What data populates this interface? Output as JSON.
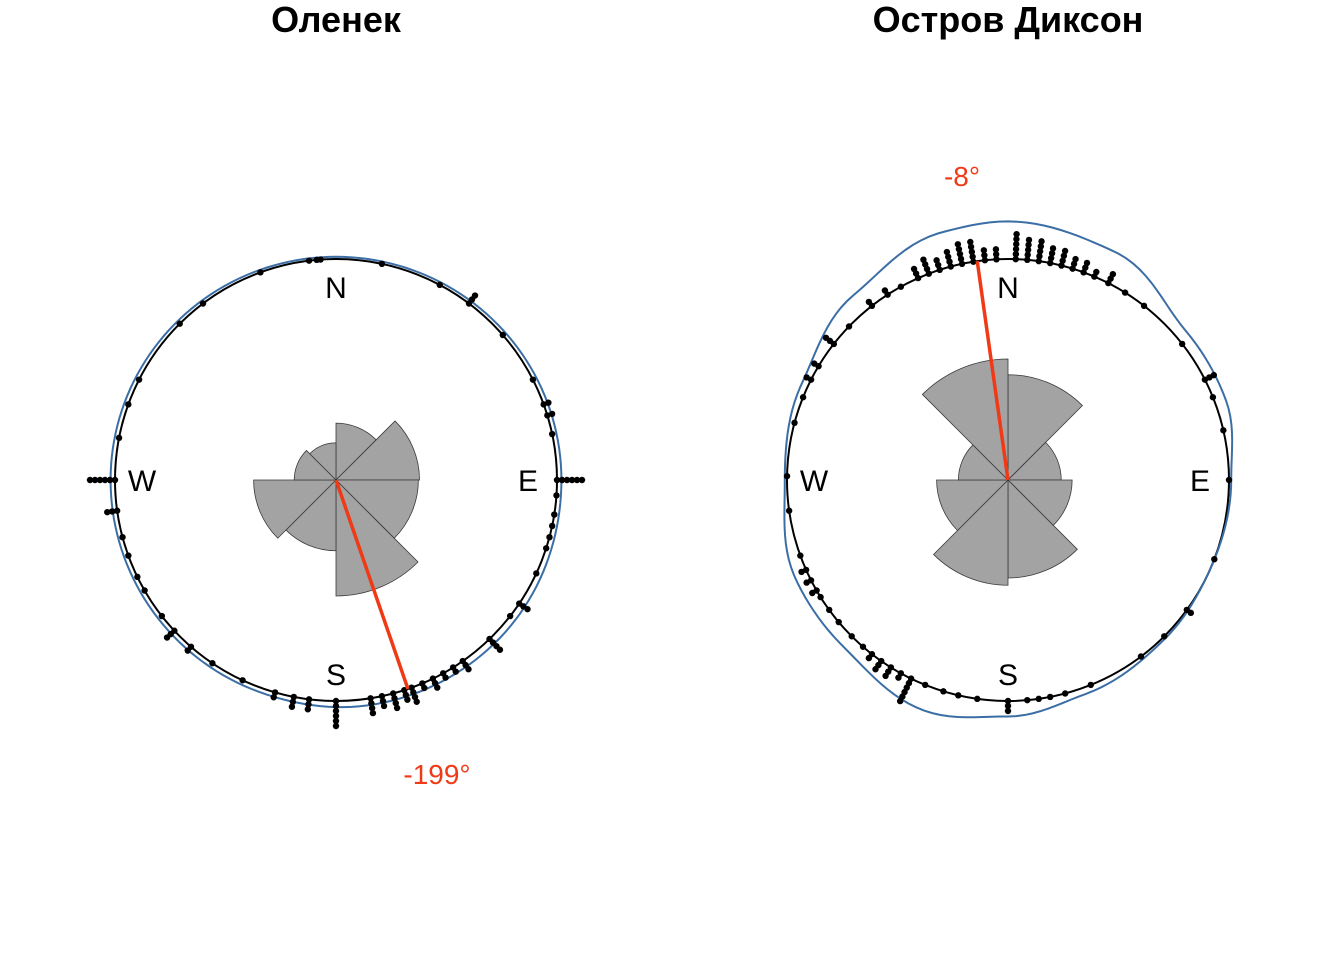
{
  "colors": {
    "rose_fill": "#a3a3a3",
    "rose_stroke": "#3a3a3a",
    "density": "#3b6ea5",
    "mean": "#f03a17",
    "circle": "#000000",
    "points": "#000000"
  },
  "chart_data": [
    {
      "type": "rose",
      "title": "Оленек",
      "compass": {
        "n": "N",
        "e": "E",
        "s": "S",
        "w": "W"
      },
      "mean_direction_deg": -199,
      "mean_label": "-199°",
      "mean_resultant_length": 1.0,
      "sectors": [
        {
          "from": 0,
          "to": 45,
          "r": 0.49
        },
        {
          "from": 45,
          "to": 90,
          "r": 0.72
        },
        {
          "from": 90,
          "to": 135,
          "r": 0.71
        },
        {
          "from": 135,
          "to": 180,
          "r": 1.0
        },
        {
          "from": 180,
          "to": 225,
          "r": 0.61
        },
        {
          "from": 225,
          "to": 270,
          "r": 0.71
        },
        {
          "from": 270,
          "to": 315,
          "r": 0.36
        },
        {
          "from": 315,
          "to": 360,
          "r": 0.32
        }
      ],
      "observations": [
        {
          "deg": 12,
          "n": 1
        },
        {
          "deg": 28,
          "n": 1
        },
        {
          "deg": 37,
          "n": 3
        },
        {
          "deg": 49,
          "n": 1
        },
        {
          "deg": 63,
          "n": 1
        },
        {
          "deg": 70,
          "n": 2
        },
        {
          "deg": 73,
          "n": 2
        },
        {
          "deg": 78,
          "n": 1
        },
        {
          "deg": 90,
          "n": 6
        },
        {
          "deg": 94,
          "n": 1
        },
        {
          "deg": 99,
          "n": 1
        },
        {
          "deg": 102,
          "n": 1
        },
        {
          "deg": 105,
          "n": 1
        },
        {
          "deg": 108,
          "n": 1
        },
        {
          "deg": 115,
          "n": 1
        },
        {
          "deg": 124,
          "n": 3
        },
        {
          "deg": 128,
          "n": 1
        },
        {
          "deg": 136,
          "n": 4
        },
        {
          "deg": 145,
          "n": 3
        },
        {
          "deg": 148,
          "n": 2
        },
        {
          "deg": 151,
          "n": 2
        },
        {
          "deg": 154,
          "n": 3
        },
        {
          "deg": 157,
          "n": 2
        },
        {
          "deg": 160,
          "n": 4
        },
        {
          "deg": 162,
          "n": 3
        },
        {
          "deg": 165,
          "n": 4
        },
        {
          "deg": 168,
          "n": 3
        },
        {
          "deg": 171,
          "n": 4
        },
        {
          "deg": 180,
          "n": 6
        },
        {
          "deg": 187,
          "n": 3
        },
        {
          "deg": 191,
          "n": 3
        },
        {
          "deg": 196,
          "n": 2
        },
        {
          "deg": 205,
          "n": 1
        },
        {
          "deg": 214,
          "n": 1
        },
        {
          "deg": 221,
          "n": 2
        },
        {
          "deg": 227,
          "n": 3
        },
        {
          "deg": 232,
          "n": 1
        },
        {
          "deg": 240,
          "n": 1
        },
        {
          "deg": 244,
          "n": 1
        },
        {
          "deg": 250,
          "n": 1
        },
        {
          "deg": 255,
          "n": 1
        },
        {
          "deg": 262,
          "n": 3
        },
        {
          "deg": 270,
          "n": 6
        },
        {
          "deg": 281,
          "n": 1
        },
        {
          "deg": 290,
          "n": 1
        },
        {
          "deg": 297,
          "n": 1
        },
        {
          "deg": 315,
          "n": 1
        },
        {
          "deg": 323,
          "n": 1
        },
        {
          "deg": 340,
          "n": 1
        },
        {
          "deg": 353,
          "n": 1
        },
        {
          "deg": 355,
          "n": 1
        },
        {
          "deg": 356,
          "n": 1
        }
      ],
      "density_curve": [
        {
          "deg": 0,
          "r": 1.01
        },
        {
          "deg": 90,
          "r": 1.02
        },
        {
          "deg": 135,
          "r": 1.03
        },
        {
          "deg": 170,
          "r": 1.03
        },
        {
          "deg": 200,
          "r": 1.02
        },
        {
          "deg": 270,
          "r": 1.02
        },
        {
          "deg": 360,
          "r": 1.01
        }
      ]
    },
    {
      "type": "rose",
      "title": "Остров Диксон",
      "compass": {
        "n": "N",
        "e": "E",
        "s": "S",
        "w": "W"
      },
      "mean_direction_deg": -8,
      "mean_label": "-8°",
      "mean_resultant_length": 1.0,
      "sectors": [
        {
          "from": 0,
          "to": 45,
          "r": 0.87
        },
        {
          "from": 45,
          "to": 90,
          "r": 0.44
        },
        {
          "from": 90,
          "to": 135,
          "r": 0.53
        },
        {
          "from": 135,
          "to": 180,
          "r": 0.81
        },
        {
          "from": 180,
          "to": 225,
          "r": 0.87
        },
        {
          "from": 225,
          "to": 270,
          "r": 0.59
        },
        {
          "from": 270,
          "to": 315,
          "r": 0.41
        },
        {
          "from": 315,
          "to": 360,
          "r": 1.0
        }
      ],
      "observations": [
        {
          "deg": 2,
          "n": 6
        },
        {
          "deg": 5,
          "n": 5
        },
        {
          "deg": 8,
          "n": 5
        },
        {
          "deg": 11,
          "n": 4
        },
        {
          "deg": 14,
          "n": 4
        },
        {
          "deg": 17,
          "n": 3
        },
        {
          "deg": 20,
          "n": 3
        },
        {
          "deg": 23,
          "n": 2
        },
        {
          "deg": 27,
          "n": 3
        },
        {
          "deg": 32,
          "n": 1
        },
        {
          "deg": 38,
          "n": 1
        },
        {
          "deg": 52,
          "n": 1
        },
        {
          "deg": 63,
          "n": 3
        },
        {
          "deg": 68,
          "n": 1
        },
        {
          "deg": 77,
          "n": 1
        },
        {
          "deg": 90,
          "n": 1
        },
        {
          "deg": 111,
          "n": 1
        },
        {
          "deg": 126,
          "n": 2
        },
        {
          "deg": 135,
          "n": 1
        },
        {
          "deg": 143,
          "n": 1
        },
        {
          "deg": 158,
          "n": 1
        },
        {
          "deg": 165,
          "n": 1
        },
        {
          "deg": 169,
          "n": 1
        },
        {
          "deg": 172,
          "n": 1
        },
        {
          "deg": 175,
          "n": 1
        },
        {
          "deg": 180,
          "n": 3
        },
        {
          "deg": 188,
          "n": 1
        },
        {
          "deg": 193,
          "n": 1
        },
        {
          "deg": 197,
          "n": 1
        },
        {
          "deg": 202,
          "n": 1
        },
        {
          "deg": 206,
          "n": 6
        },
        {
          "deg": 209,
          "n": 2
        },
        {
          "deg": 212,
          "n": 3
        },
        {
          "deg": 215,
          "n": 3
        },
        {
          "deg": 218,
          "n": 2
        },
        {
          "deg": 221,
          "n": 1
        },
        {
          "deg": 225,
          "n": 1
        },
        {
          "deg": 230,
          "n": 1
        },
        {
          "deg": 234,
          "n": 1
        },
        {
          "deg": 238,
          "n": 1
        },
        {
          "deg": 240,
          "n": 2
        },
        {
          "deg": 243,
          "n": 2
        },
        {
          "deg": 246,
          "n": 2
        },
        {
          "deg": 250,
          "n": 1
        },
        {
          "deg": 262,
          "n": 1
        },
        {
          "deg": 271,
          "n": 1
        },
        {
          "deg": 285,
          "n": 1
        },
        {
          "deg": 292,
          "n": 1
        },
        {
          "deg": 297,
          "n": 2
        },
        {
          "deg": 301,
          "n": 2
        },
        {
          "deg": 308,
          "n": 3
        },
        {
          "deg": 314,
          "n": 1
        },
        {
          "deg": 322,
          "n": 2
        },
        {
          "deg": 327,
          "n": 2
        },
        {
          "deg": 331,
          "n": 1
        },
        {
          "deg": 336,
          "n": 3
        },
        {
          "deg": 339,
          "n": 4
        },
        {
          "deg": 342,
          "n": 3
        },
        {
          "deg": 345,
          "n": 4
        },
        {
          "deg": 348,
          "n": 5
        },
        {
          "deg": 351,
          "n": 5
        },
        {
          "deg": 354,
          "n": 3
        },
        {
          "deg": 357,
          "n": 3
        }
      ],
      "density_curve": [
        {
          "deg": 0,
          "r": 1.17
        },
        {
          "deg": 25,
          "r": 1.14
        },
        {
          "deg": 50,
          "r": 1.05
        },
        {
          "deg": 70,
          "r": 1.05
        },
        {
          "deg": 90,
          "r": 1.01
        },
        {
          "deg": 115,
          "r": 1.0
        },
        {
          "deg": 135,
          "r": 1.01
        },
        {
          "deg": 160,
          "r": 1.03
        },
        {
          "deg": 180,
          "r": 1.07
        },
        {
          "deg": 200,
          "r": 1.11
        },
        {
          "deg": 225,
          "r": 1.06
        },
        {
          "deg": 245,
          "r": 1.06
        },
        {
          "deg": 270,
          "r": 1.01
        },
        {
          "deg": 295,
          "r": 1.03
        },
        {
          "deg": 320,
          "r": 1.09
        },
        {
          "deg": 345,
          "r": 1.16
        },
        {
          "deg": 360,
          "r": 1.17
        }
      ]
    }
  ]
}
